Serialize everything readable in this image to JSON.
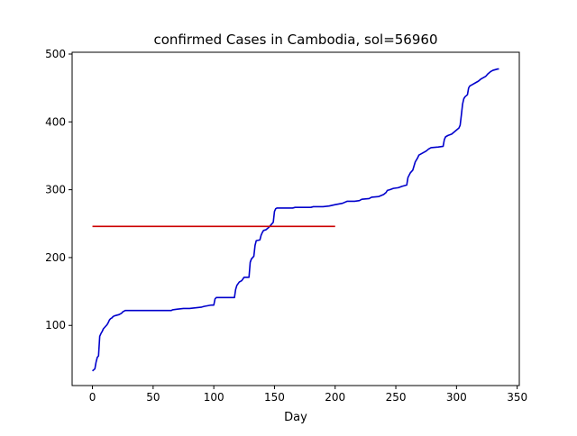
{
  "chart_data": {
    "type": "line",
    "title": "confirmed Cases in Cambodia, sol=56960",
    "xlabel": "Day",
    "ylabel": "",
    "xlim": [
      -16.75,
      351.75
    ],
    "ylim": [
      11.35,
      502.65
    ],
    "x_ticks": [
      0,
      50,
      100,
      150,
      200,
      250,
      300,
      350
    ],
    "y_ticks": [
      100,
      200,
      300,
      400,
      500
    ],
    "grid": false,
    "legend": "none",
    "series": [
      {
        "color": "#0000cc",
        "points": [
          [
            0,
            33
          ],
          [
            2,
            36
          ],
          [
            3,
            46
          ],
          [
            4,
            53
          ],
          [
            5,
            55
          ],
          [
            6,
            84
          ],
          [
            7,
            88
          ],
          [
            8,
            91
          ],
          [
            9,
            95
          ],
          [
            10,
            97
          ],
          [
            11,
            99
          ],
          [
            12,
            101
          ],
          [
            13,
            104
          ],
          [
            14,
            108
          ],
          [
            15,
            110
          ],
          [
            16,
            111
          ],
          [
            17,
            113
          ],
          [
            18,
            114
          ],
          [
            20,
            115
          ],
          [
            22,
            116
          ],
          [
            23,
            117
          ],
          [
            24,
            118
          ],
          [
            25,
            120
          ],
          [
            26,
            121
          ],
          [
            27,
            122
          ],
          [
            30,
            122
          ],
          [
            40,
            122
          ],
          [
            50,
            122
          ],
          [
            60,
            122
          ],
          [
            65,
            122
          ],
          [
            66,
            123
          ],
          [
            70,
            124
          ],
          [
            75,
            125
          ],
          [
            80,
            125
          ],
          [
            85,
            126
          ],
          [
            90,
            127
          ],
          [
            92,
            128
          ],
          [
            95,
            129
          ],
          [
            98,
            130
          ],
          [
            100,
            130
          ],
          [
            101,
            139
          ],
          [
            102,
            141
          ],
          [
            110,
            141
          ],
          [
            117,
            141
          ],
          [
            118,
            153
          ],
          [
            119,
            159
          ],
          [
            121,
            164
          ],
          [
            123,
            166
          ],
          [
            125,
            171
          ],
          [
            129,
            171
          ],
          [
            130,
            193
          ],
          [
            131,
            198
          ],
          [
            133,
            202
          ],
          [
            134,
            218
          ],
          [
            135,
            225
          ],
          [
            138,
            226
          ],
          [
            139,
            233
          ],
          [
            140,
            237
          ],
          [
            141,
            240
          ],
          [
            143,
            241
          ],
          [
            145,
            244
          ],
          [
            147,
            248
          ],
          [
            149,
            252
          ],
          [
            150,
            268
          ],
          [
            151,
            272
          ],
          [
            152,
            273
          ],
          [
            160,
            273
          ],
          [
            165,
            273
          ],
          [
            167,
            274
          ],
          [
            175,
            274
          ],
          [
            180,
            274
          ],
          [
            182,
            275
          ],
          [
            190,
            275
          ],
          [
            195,
            276
          ],
          [
            200,
            278
          ],
          [
            203,
            279
          ],
          [
            206,
            280
          ],
          [
            210,
            283
          ],
          [
            216,
            283
          ],
          [
            220,
            284
          ],
          [
            222,
            286
          ],
          [
            228,
            287
          ],
          [
            230,
            289
          ],
          [
            236,
            290
          ],
          [
            240,
            293
          ],
          [
            242,
            296
          ],
          [
            243,
            299
          ],
          [
            245,
            300
          ],
          [
            248,
            302
          ],
          [
            252,
            303
          ],
          [
            255,
            305
          ],
          [
            257,
            306
          ],
          [
            259,
            307
          ],
          [
            260,
            318
          ],
          [
            262,
            325
          ],
          [
            264,
            329
          ],
          [
            265,
            335
          ],
          [
            266,
            341
          ],
          [
            268,
            347
          ],
          [
            269,
            351
          ],
          [
            271,
            353
          ],
          [
            273,
            355
          ],
          [
            275,
            357
          ],
          [
            277,
            360
          ],
          [
            279,
            362
          ],
          [
            285,
            363
          ],
          [
            289,
            364
          ],
          [
            290,
            374
          ],
          [
            291,
            378
          ],
          [
            293,
            380
          ],
          [
            296,
            382
          ],
          [
            298,
            385
          ],
          [
            300,
            388
          ],
          [
            302,
            391
          ],
          [
            303,
            395
          ],
          [
            304,
            410
          ],
          [
            305,
            426
          ],
          [
            306,
            434
          ],
          [
            307,
            437
          ],
          [
            309,
            440
          ],
          [
            310,
            450
          ],
          [
            311,
            453
          ],
          [
            313,
            455
          ],
          [
            316,
            458
          ],
          [
            318,
            460
          ],
          [
            320,
            463
          ],
          [
            322,
            465
          ],
          [
            324,
            467
          ],
          [
            326,
            471
          ],
          [
            328,
            474
          ],
          [
            330,
            476
          ],
          [
            332,
            477
          ],
          [
            334,
            478
          ],
          [
            335,
            478
          ]
        ]
      },
      {
        "color": "#cc0000",
        "points": [
          [
            0,
            246
          ],
          [
            200,
            246
          ]
        ]
      }
    ]
  }
}
